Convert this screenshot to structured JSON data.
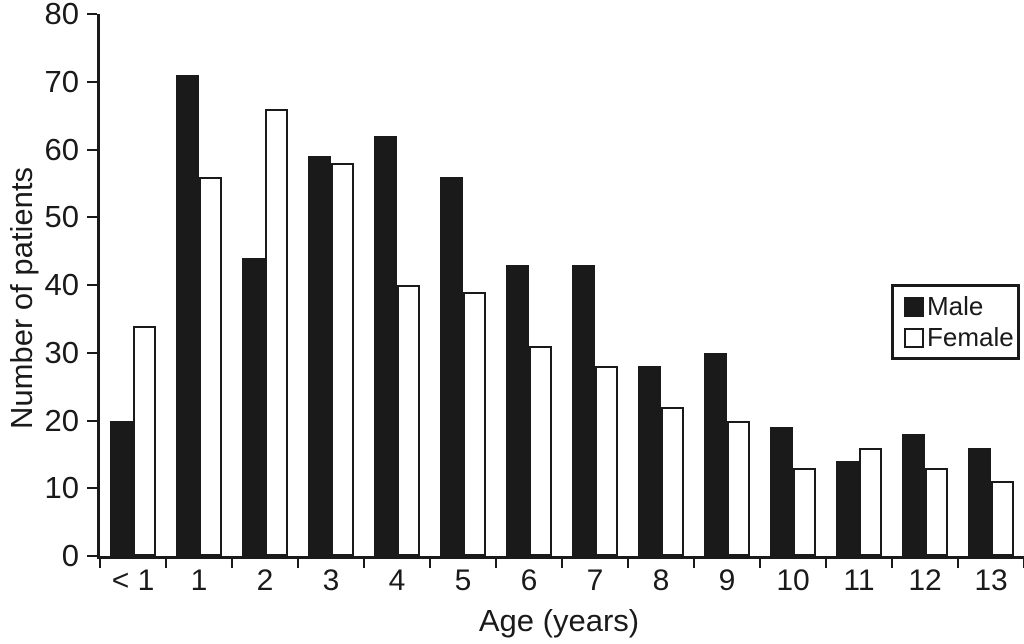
{
  "chart_data": {
    "type": "bar",
    "title": "",
    "xlabel": "Age (years)",
    "ylabel": "Number of patients",
    "categories": [
      "< 1",
      "1",
      "2",
      "3",
      "4",
      "5",
      "6",
      "7",
      "8",
      "9",
      "10",
      "11",
      "12",
      "13"
    ],
    "series": [
      {
        "name": "Male",
        "fill": "#1a1a1a",
        "outline": "#1a1a1a",
        "values": [
          20,
          71,
          44,
          59,
          62,
          56,
          43,
          43,
          28,
          30,
          19,
          14,
          18,
          16
        ]
      },
      {
        "name": "Female",
        "fill": "#ffffff",
        "outline": "#1a1a1a",
        "values": [
          34,
          56,
          66,
          58,
          40,
          39,
          31,
          28,
          22,
          20,
          13,
          16,
          13,
          11
        ]
      }
    ],
    "ylim": [
      0,
      80
    ],
    "yticks": [
      0,
      10,
      20,
      30,
      40,
      50,
      60,
      70,
      80
    ],
    "grid": false,
    "legend_position": "inside-right",
    "colors": {
      "axis": "#1a1a1a",
      "background": "#ffffff",
      "male_bar": "#1a1a1a",
      "female_bar": "#ffffff",
      "bar_outline": "#1a1a1a"
    }
  }
}
